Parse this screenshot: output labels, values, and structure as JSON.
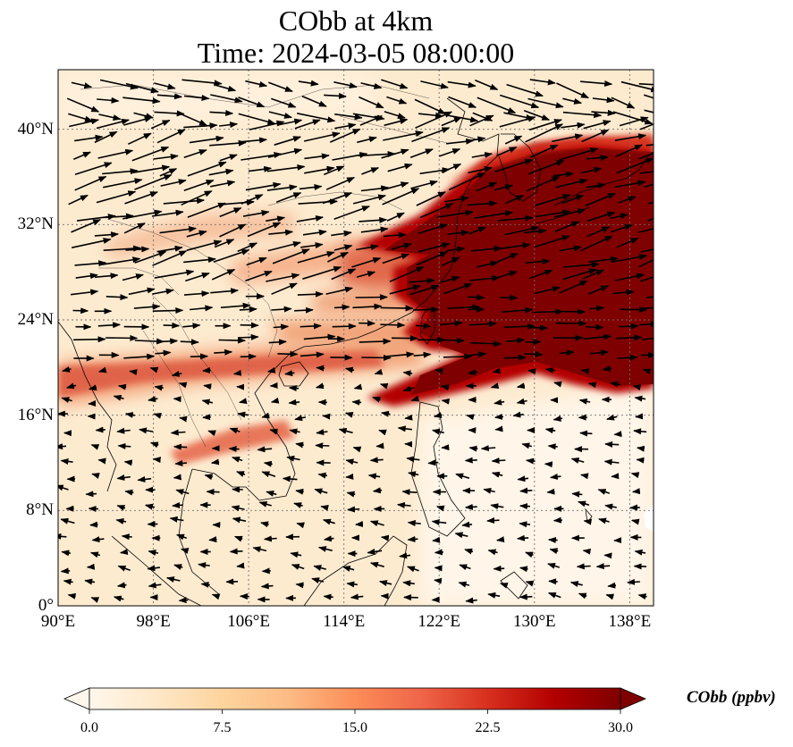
{
  "title": {
    "line1": "CObb at 4km",
    "line2": "Time: 2024-03-05 08:00:00"
  },
  "axes": {
    "x_ticks": [
      "90°E",
      "98°E",
      "106°E",
      "114°E",
      "122°E",
      "130°E",
      "138°E"
    ],
    "y_ticks": [
      "40°N",
      "32°N",
      "24°N",
      "16°N",
      "8°N",
      "0°"
    ],
    "lon_range": [
      90,
      140
    ],
    "lat_range": [
      0,
      45
    ],
    "grid": "dotted"
  },
  "colorbar": {
    "label": "CObb (ppbv)",
    "ticks": [
      "0.0",
      "7.5",
      "15.0",
      "22.5",
      "30.0"
    ],
    "range": [
      0,
      30
    ],
    "extend": "both",
    "colormap": "OrRd",
    "colors": [
      "#fff7ec",
      "#fee8c8",
      "#fdd49e",
      "#fdbb84",
      "#fc8d59",
      "#ef6548",
      "#d7301f",
      "#b30000",
      "#7f0000"
    ]
  },
  "chart_data": {
    "type": "heatmap",
    "title": "CObb at 4km",
    "subtitle": "Time: 2024-03-05 08:00:00",
    "variable": "CObb",
    "units": "ppbv",
    "xlabel": "",
    "ylabel": "",
    "xlim": [
      90,
      140
    ],
    "ylim": [
      0,
      45
    ],
    "x_ticks": [
      90,
      98,
      106,
      114,
      122,
      130,
      138
    ],
    "y_ticks": [
      0,
      8,
      16,
      24,
      32,
      40
    ],
    "color_range": [
      0,
      30
    ],
    "overlay": "wind vectors (predominantly westerly north of ~20°N, weak easterly south of ~16°N)",
    "high_concentration_plume": {
      "description": "Dense plume (>30 ppbv) from eastern China over East China Sea and western Pacific",
      "lon_range": [
        118,
        140
      ],
      "lat_range": [
        17,
        38
      ]
    },
    "moderate_bands": [
      {
        "description": "Band along northern Southeast Asia",
        "lon_range": [
          90,
          122
        ],
        "lat_range": [
          17,
          21
        ]
      },
      {
        "description": "Band over southern China",
        "lon_range": [
          112,
          125
        ],
        "lat_range": [
          27,
          31
        ]
      }
    ]
  }
}
